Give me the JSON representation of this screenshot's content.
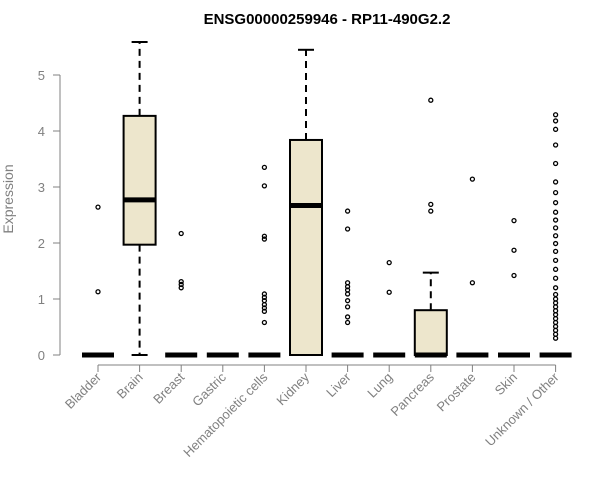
{
  "chart_data": {
    "type": "box",
    "title": "ENSG00000259946 - RP11-490G2.2",
    "xlabel": "",
    "ylabel": "Expression",
    "ylim": [
      0,
      5.5
    ],
    "yticks": [
      0,
      1,
      2,
      3,
      4,
      5
    ],
    "grid": false,
    "box_fill": "#ede6cc",
    "categories": [
      "Bladder",
      "Brain",
      "Breast",
      "Gastric",
      "Hematopoietic cells",
      "Kidney",
      "Liver",
      "Lung",
      "Pancreas",
      "Prostate",
      "Skin",
      "Unknown / Other"
    ],
    "boxes": [
      {
        "category": "Bladder",
        "q1": 0,
        "median": 0,
        "q3": 0,
        "whisker_low": 0,
        "whisker_high": 0,
        "outliers": [
          1.13,
          2.64
        ]
      },
      {
        "category": "Brain",
        "q1": 1.97,
        "median": 2.77,
        "q3": 4.27,
        "whisker_low": 0,
        "whisker_high": 5.59,
        "outliers": []
      },
      {
        "category": "Breast",
        "q1": 0,
        "median": 0,
        "q3": 0,
        "whisker_low": 0,
        "whisker_high": 0,
        "outliers": [
          1.2,
          1.26,
          1.31,
          2.17
        ]
      },
      {
        "category": "Gastric",
        "q1": 0,
        "median": 0,
        "q3": 0,
        "whisker_low": 0,
        "whisker_high": 0,
        "outliers": []
      },
      {
        "category": "Hematopoietic cells",
        "q1": 0,
        "median": 0,
        "q3": 0,
        "whisker_low": 0,
        "whisker_high": 0,
        "outliers": [
          0.58,
          0.78,
          0.84,
          0.9,
          0.97,
          1.03,
          1.09,
          2.07,
          2.12,
          3.02,
          3.35
        ]
      },
      {
        "category": "Kidney",
        "q1": 0,
        "median": 2.67,
        "q3": 3.84,
        "whisker_low": 0,
        "whisker_high": 5.45,
        "outliers": []
      },
      {
        "category": "Liver",
        "q1": 0,
        "median": 0,
        "q3": 0,
        "whisker_low": 0,
        "whisker_high": 0,
        "outliers": [
          0.58,
          0.68,
          0.86,
          0.97,
          1.09,
          1.16,
          1.22,
          1.29,
          2.25,
          2.57
        ]
      },
      {
        "category": "Lung",
        "q1": 0,
        "median": 0,
        "q3": 0,
        "whisker_low": 0,
        "whisker_high": 0,
        "outliers": [
          1.12,
          1.65
        ]
      },
      {
        "category": "Pancreas",
        "q1": 0,
        "median": 0,
        "q3": 0.8,
        "whisker_low": 0,
        "whisker_high": 1.47,
        "outliers": [
          2.57,
          2.69,
          4.55
        ]
      },
      {
        "category": "Prostate",
        "q1": 0,
        "median": 0,
        "q3": 0,
        "whisker_low": 0,
        "whisker_high": 0,
        "outliers": [
          1.29,
          3.14
        ]
      },
      {
        "category": "Skin",
        "q1": 0,
        "median": 0,
        "q3": 0,
        "whisker_low": 0,
        "whisker_high": 0,
        "outliers": [
          1.42,
          1.87,
          2.4
        ]
      },
      {
        "category": "Unknown / Other",
        "q1": 0,
        "median": 0,
        "q3": 0,
        "whisker_low": 0,
        "whisker_high": 0,
        "outliers": [
          0.3,
          0.37,
          0.44,
          0.51,
          0.58,
          0.65,
          0.72,
          0.79,
          0.86,
          0.93,
          1.0,
          1.08,
          1.2,
          1.37,
          1.53,
          1.69,
          1.85,
          1.99,
          2.13,
          2.27,
          2.41,
          2.55,
          2.72,
          2.9,
          3.09,
          3.42,
          3.75,
          4.03,
          4.18,
          4.29
        ]
      }
    ]
  }
}
